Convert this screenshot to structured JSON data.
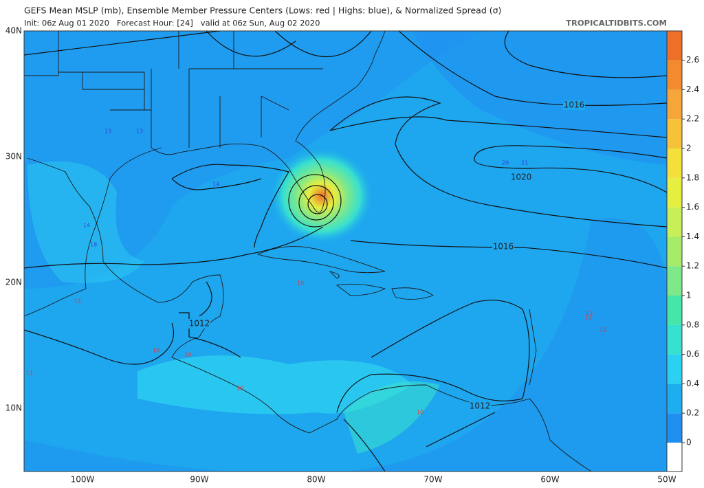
{
  "header": {
    "title": "GEFS Mean MSLP (mb), Ensemble Member Pressure Centers (Lows: red | Highs: blue), & Normalized Spread (σ)",
    "subtitle": "Init: 06z Aug 01 2020   Forecast Hour: [24]   valid at 06z Sun, Aug 02 2020",
    "site": "TROPICALTIDBITS.COM"
  },
  "map": {
    "lat_labels": [
      "40N",
      "30N",
      "20N",
      "10N"
    ],
    "lon_labels": [
      "100W",
      "90W",
      "80W",
      "70W",
      "60W",
      "50W"
    ],
    "isobar_labels": [
      "1016",
      "1020",
      "1016",
      "1012",
      "1012"
    ],
    "low_labels": [
      "10",
      "11",
      "11",
      "10",
      "10",
      "12",
      "12",
      "13",
      "10",
      "10"
    ],
    "high_labels": [
      "13",
      "13",
      "14",
      "14",
      "18",
      "20",
      "21"
    ]
  },
  "colorbar": {
    "ticks": [
      0,
      0.2,
      0.4,
      0.6,
      0.8,
      1,
      1.2,
      1.4,
      1.6,
      1.8,
      2,
      2.2,
      2.4,
      2.6
    ],
    "colors": [
      "#ffffff",
      "#1f8ff0",
      "#1eaef0",
      "#2cd0f0",
      "#38e0cf",
      "#46e6a8",
      "#7ee88a",
      "#a6ec6a",
      "#c8ee58",
      "#e6ee40",
      "#f4e03c",
      "#f6c23a",
      "#f6a638",
      "#f28a30",
      "#ee7028"
    ]
  }
}
